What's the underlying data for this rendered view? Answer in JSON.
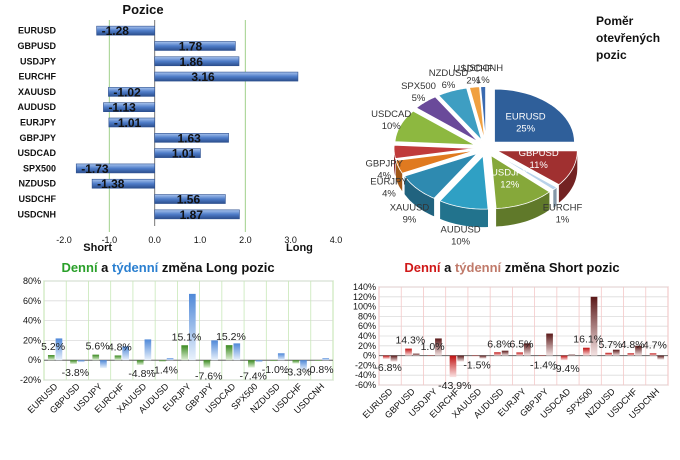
{
  "colors": {
    "long_daily": "#4a9a2a",
    "long_weekly": "#5a8fd8",
    "short_daily": "#c01818",
    "short_weekly": "#5a2020",
    "position_bar": "#4e7cc8",
    "title_green": "#2aa02a",
    "title_blue": "#2a7fd0",
    "title_red": "#d01818",
    "title_rose": "#c07a6a"
  },
  "chart_data": [
    {
      "type": "bar",
      "orientation": "horizontal",
      "title": "Pozice",
      "categories": [
        "EURUSD",
        "GBPUSD",
        "USDJPY",
        "EURCHF",
        "XAUUSD",
        "AUDUSD",
        "EURJPY",
        "GBPJPY",
        "USDCAD",
        "SPX500",
        "NZDUSD",
        "USDCHF",
        "USDCNH"
      ],
      "values": [
        -1.28,
        1.78,
        1.86,
        3.16,
        -1.02,
        -1.13,
        -1.01,
        1.63,
        1.01,
        -1.73,
        -1.38,
        1.56,
        1.87
      ],
      "value_labels": [
        "-1.28",
        "1.78",
        "1.86",
        "3.16",
        "-1.02",
        "-1.13",
        "-1.01",
        "1.63",
        "1.01",
        "-1.73",
        "-1.38",
        "1.56",
        "1.87"
      ],
      "xlim": [
        -2.0,
        4.0
      ],
      "xticks": [
        "-2.0",
        "-1.0",
        "0.0",
        "1.0",
        "2.0",
        "3.0",
        "4.0"
      ],
      "vertical_lines": [
        -1.0,
        2.0
      ],
      "bottom_labels": {
        "short": "Short",
        "long": "Long"
      }
    },
    {
      "type": "pie",
      "title_lines": [
        "Poměr",
        "otevřených",
        "pozic"
      ],
      "slices": [
        {
          "name": "EURUSD",
          "label": "25%",
          "value": 25,
          "color": "#2f5f9a"
        },
        {
          "name": "GBPUSD",
          "label": "11%",
          "value": 11,
          "color": "#a03030"
        },
        {
          "name": "EURCHF",
          "label": "1%",
          "value": 1,
          "color": "#b8d2ea"
        },
        {
          "name": "USDJPY",
          "label": "12%",
          "value": 12,
          "color": "#86a83a"
        },
        {
          "name": "AUDUSD",
          "label": "10%",
          "value": 10,
          "color": "#2fa0c4"
        },
        {
          "name": "XAUUSD",
          "label": "9%",
          "value": 9,
          "color": "#2e8ab0"
        },
        {
          "name": "EURJPY",
          "label": "4%",
          "value": 4,
          "color": "#e07a20"
        },
        {
          "name": "GBPJPY",
          "label": "4%",
          "value": 4,
          "color": "#c03a3a"
        },
        {
          "name": "USDCAD",
          "label": "10%",
          "value": 10,
          "color": "#8db840"
        },
        {
          "name": "SPX500",
          "label": "5%",
          "value": 5,
          "color": "#6a4a9a"
        },
        {
          "name": "NZDUSD",
          "label": "6%",
          "value": 6,
          "color": "#3e9ec2"
        },
        {
          "name": "USDCHF",
          "label": "2%",
          "value": 2,
          "color": "#f0a040"
        },
        {
          "name": "USDCNH",
          "label": "1%",
          "value": 1,
          "color": "#3a6ab0"
        }
      ]
    },
    {
      "type": "bar",
      "title_parts": [
        "Denní",
        " a ",
        "týdenní",
        " změna Long pozic"
      ],
      "categories": [
        "EURUSD",
        "GBPUSD",
        "USDJPY",
        "EURCHF",
        "XAUUSD",
        "AUDUSD",
        "EURJPY",
        "GBPJPY",
        "USDCAD",
        "SPX500",
        "NZDUSD",
        "USDCHF",
        "USDCNH"
      ],
      "series": [
        {
          "values": [
            5.2,
            -3.8,
            5.6,
            4.8,
            -4.8,
            -1.4,
            15.1,
            -7.6,
            15.2,
            -7.4,
            -1.0,
            -3.3,
            -0.8
          ]
        },
        {
          "values": [
            22,
            -2,
            -8,
            14,
            21,
            2,
            67,
            20,
            17,
            -2,
            7,
            -10,
            2
          ]
        }
      ],
      "data_labels": [
        "5.2%",
        "-3.8%",
        "5.6%",
        "4.8%",
        "-4.8%",
        "-1.4%",
        "15.1%",
        "-7.6%",
        "15.2%",
        "-7.4%",
        "-1.0%",
        "-3.3%",
        "-0.8%"
      ],
      "ylim": [
        -20,
        80
      ],
      "yticks": [
        "-20%",
        "0%",
        "20%",
        "40%",
        "60%",
        "80%"
      ]
    },
    {
      "type": "bar",
      "title_parts": [
        "Denní",
        " a ",
        "týdenní",
        " změna Short pozic"
      ],
      "categories": [
        "EURUSD",
        "GBPUSD",
        "USDJPY",
        "EURCHF",
        "XAUUSD",
        "AUDUSD",
        "EURJPY",
        "GBPJPY",
        "USDCAD",
        "SPX500",
        "NZDUSD",
        "USDCHF",
        "USDCNH"
      ],
      "series": [
        {
          "values": [
            -6.8,
            14.3,
            1.0,
            -43.9,
            -1.5,
            6.8,
            6.5,
            -1.4,
            -9.4,
            16.1,
            5.7,
            4.8,
            4.7
          ]
        },
        {
          "values": [
            -12,
            4,
            35,
            -12,
            -6,
            10,
            25,
            45,
            2,
            120,
            12,
            20,
            -8
          ]
        }
      ],
      "data_labels": [
        "-6.8%",
        "14.3%",
        "1.0%",
        "-43.9%",
        "-1.5%",
        "6.8%",
        "6.5%",
        "-1.4%",
        "-9.4%",
        "16.1%",
        "5.7%",
        "4.8%",
        "4.7%"
      ],
      "ylim": [
        -60,
        140
      ],
      "yticks": [
        "-60%",
        "-40%",
        "-20%",
        "0%",
        "20%",
        "40%",
        "60%",
        "80%",
        "100%",
        "120%",
        "140%"
      ]
    }
  ]
}
